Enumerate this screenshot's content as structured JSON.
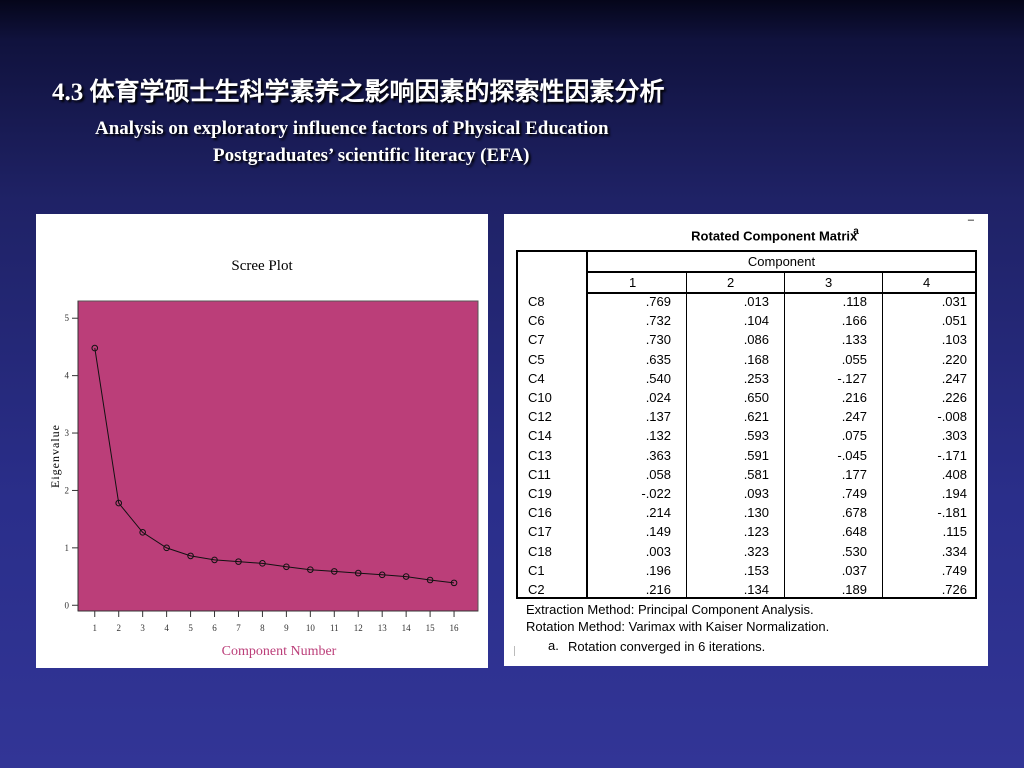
{
  "slide": {
    "title": "4.3 体育学硕士生科学素养之影响因素的探索性因素分析",
    "subtitle_line1": "Analysis on exploratory influence factors of Physical Education",
    "subtitle_line2": "Postgraduates’ scientific literacy (EFA)"
  },
  "colors": {
    "plot_bg": "#bb3e79",
    "axis_label": "#bb3e79",
    "slide_text": "#ffffff"
  },
  "chart_data": [
    {
      "type": "line",
      "title": "Scree Plot",
      "xlabel": "Component Number",
      "ylabel": "Eigenvalue",
      "x": [
        1,
        2,
        3,
        4,
        5,
        6,
        7,
        8,
        9,
        10,
        11,
        12,
        13,
        14,
        15,
        16
      ],
      "series": [
        {
          "values": [
            4.48,
            1.78,
            1.27,
            1.0,
            0.86,
            0.79,
            0.76,
            0.73,
            0.67,
            0.62,
            0.59,
            0.56,
            0.53,
            0.5,
            0.44,
            0.39
          ]
        }
      ],
      "xlim": [
        0.3,
        17
      ],
      "ylim": [
        -0.1,
        5.3
      ],
      "yticks": [
        0,
        1,
        2,
        3,
        4,
        5
      ],
      "grid": false,
      "marker": "circle"
    },
    {
      "type": "table",
      "title": "Rotated Component Matrix",
      "title_note": "a",
      "group_header": "Component",
      "columns": [
        "1",
        "2",
        "3",
        "4"
      ],
      "rows": [
        {
          "label": "C8",
          "values": [
            ".769",
            ".013",
            ".118",
            ".031"
          ]
        },
        {
          "label": "C6",
          "values": [
            ".732",
            ".104",
            ".166",
            ".051"
          ]
        },
        {
          "label": "C7",
          "values": [
            ".730",
            ".086",
            ".133",
            ".103"
          ]
        },
        {
          "label": "C5",
          "values": [
            ".635",
            ".168",
            ".055",
            ".220"
          ]
        },
        {
          "label": "C4",
          "values": [
            ".540",
            ".253",
            "-.127",
            ".247"
          ]
        },
        {
          "label": "C10",
          "values": [
            ".024",
            ".650",
            ".216",
            ".226"
          ]
        },
        {
          "label": "C12",
          "values": [
            ".137",
            ".621",
            ".247",
            "-.008"
          ]
        },
        {
          "label": "C14",
          "values": [
            ".132",
            ".593",
            ".075",
            ".303"
          ]
        },
        {
          "label": "C13",
          "values": [
            ".363",
            ".591",
            "-.045",
            "-.171"
          ]
        },
        {
          "label": "C11",
          "values": [
            ".058",
            ".581",
            ".177",
            ".408"
          ]
        },
        {
          "label": "C19",
          "values": [
            "-.022",
            ".093",
            ".749",
            ".194"
          ]
        },
        {
          "label": "C16",
          "values": [
            ".214",
            ".130",
            ".678",
            "-.181"
          ]
        },
        {
          "label": "C17",
          "values": [
            ".149",
            ".123",
            ".648",
            ".115"
          ]
        },
        {
          "label": "C18",
          "values": [
            ".003",
            ".323",
            ".530",
            ".334"
          ]
        },
        {
          "label": "C1",
          "values": [
            ".196",
            ".153",
            ".037",
            ".749"
          ]
        },
        {
          "label": "C2",
          "values": [
            ".216",
            ".134",
            ".189",
            ".726"
          ]
        }
      ],
      "footnotes": {
        "extraction": "Extraction Method: Principal Component Analysis.",
        "rotation": "Rotation Method: Varimax with Kaiser Normalization.",
        "note_marker": "a.",
        "note_text": "Rotation converged in 6 iterations."
      }
    }
  ]
}
